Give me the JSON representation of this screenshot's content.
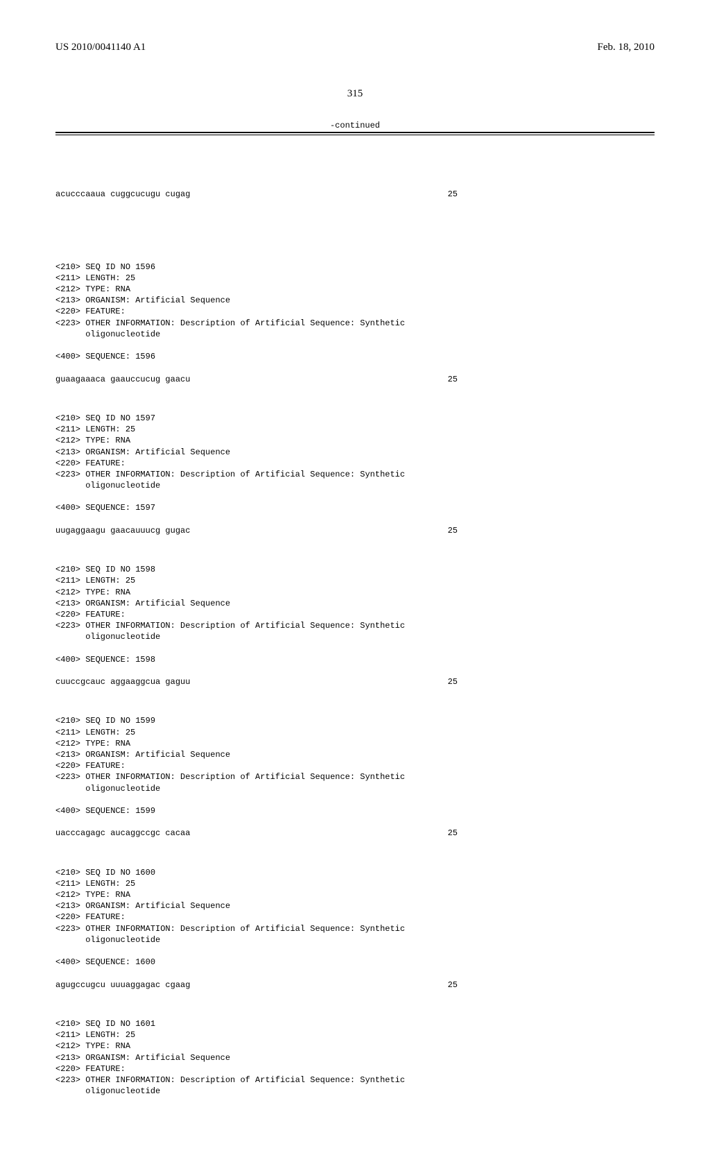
{
  "header": {
    "pub_number": "US 2010/0041140 A1",
    "pub_date": "Feb. 18, 2010"
  },
  "page_number": "315",
  "continued_label": "-continued",
  "top_sequence": {
    "seq": "acucccaaua cuggcucugu cugag",
    "len": "25"
  },
  "entries": [
    {
      "tags": [
        "<210> SEQ ID NO 1596",
        "<211> LENGTH: 25",
        "<212> TYPE: RNA",
        "<213> ORGANISM: Artificial Sequence",
        "<220> FEATURE:",
        "<223> OTHER INFORMATION: Description of Artificial Sequence: Synthetic",
        "      oligonucleotide"
      ],
      "seq_label": "<400> SEQUENCE: 1596",
      "seq": "guaagaaaca gaauccucug gaacu",
      "len": "25"
    },
    {
      "tags": [
        "<210> SEQ ID NO 1597",
        "<211> LENGTH: 25",
        "<212> TYPE: RNA",
        "<213> ORGANISM: Artificial Sequence",
        "<220> FEATURE:",
        "<223> OTHER INFORMATION: Description of Artificial Sequence: Synthetic",
        "      oligonucleotide"
      ],
      "seq_label": "<400> SEQUENCE: 1597",
      "seq": "uugaggaagu gaacauuucg gugac",
      "len": "25"
    },
    {
      "tags": [
        "<210> SEQ ID NO 1598",
        "<211> LENGTH: 25",
        "<212> TYPE: RNA",
        "<213> ORGANISM: Artificial Sequence",
        "<220> FEATURE:",
        "<223> OTHER INFORMATION: Description of Artificial Sequence: Synthetic",
        "      oligonucleotide"
      ],
      "seq_label": "<400> SEQUENCE: 1598",
      "seq": "cuuccgcauc aggaaggcua gaguu",
      "len": "25"
    },
    {
      "tags": [
        "<210> SEQ ID NO 1599",
        "<211> LENGTH: 25",
        "<212> TYPE: RNA",
        "<213> ORGANISM: Artificial Sequence",
        "<220> FEATURE:",
        "<223> OTHER INFORMATION: Description of Artificial Sequence: Synthetic",
        "      oligonucleotide"
      ],
      "seq_label": "<400> SEQUENCE: 1599",
      "seq": "uacccagagc aucaggccgc cacaa",
      "len": "25"
    },
    {
      "tags": [
        "<210> SEQ ID NO 1600",
        "<211> LENGTH: 25",
        "<212> TYPE: RNA",
        "<213> ORGANISM: Artificial Sequence",
        "<220> FEATURE:",
        "<223> OTHER INFORMATION: Description of Artificial Sequence: Synthetic",
        "      oligonucleotide"
      ],
      "seq_label": "<400> SEQUENCE: 1600",
      "seq": "agugccugcu uuuaggagac cgaag",
      "len": "25"
    },
    {
      "tags": [
        "<210> SEQ ID NO 1601",
        "<211> LENGTH: 25",
        "<212> TYPE: RNA",
        "<213> ORGANISM: Artificial Sequence",
        "<220> FEATURE:",
        "<223> OTHER INFORMATION: Description of Artificial Sequence: Synthetic",
        "      oligonucleotide"
      ],
      "seq_label": "",
      "seq": "",
      "len": ""
    }
  ]
}
